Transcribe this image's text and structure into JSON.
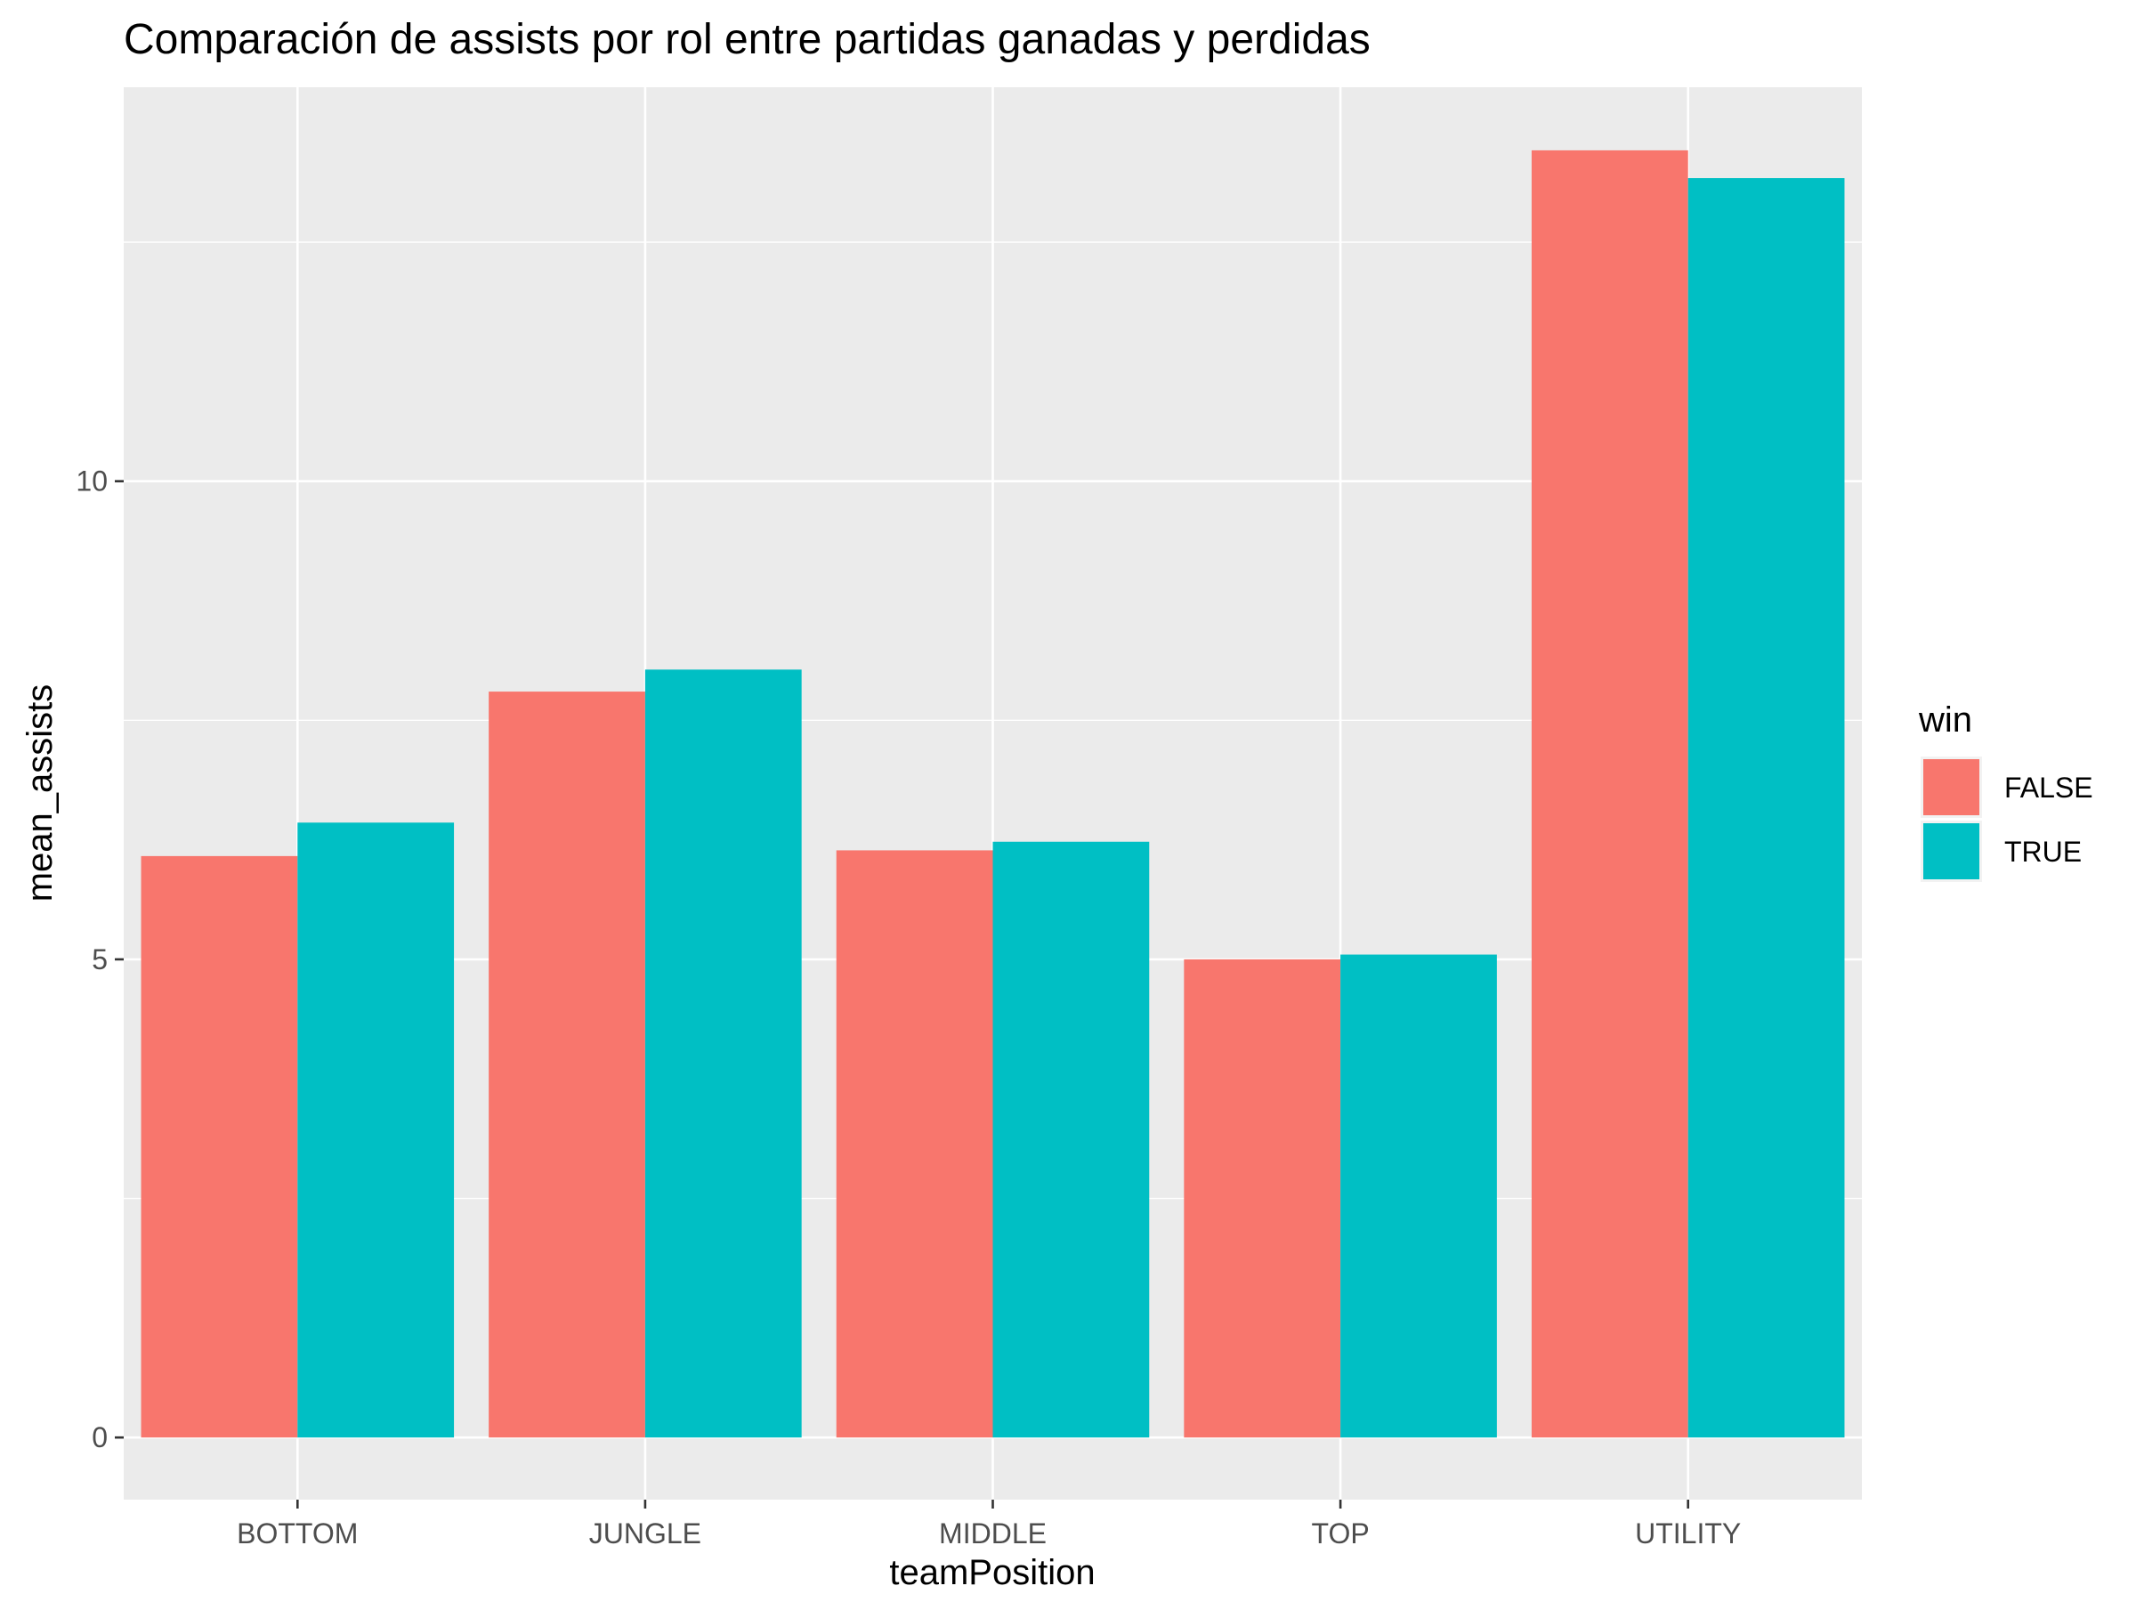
{
  "chart_data": {
    "type": "bar",
    "title": "Comparación de assists por rol entre partidas ganadas y perdidas",
    "xlabel": "teamPosition",
    "ylabel": "mean_assists",
    "categories": [
      "BOTTOM",
      "JUNGLE",
      "MIDDLE",
      "TOP",
      "UTILITY"
    ],
    "series": [
      {
        "name": "FALSE",
        "color": "#F8766D",
        "values": [
          6.08,
          7.8,
          6.14,
          5.0,
          13.46
        ]
      },
      {
        "name": "TRUE",
        "color": "#00BFC4",
        "values": [
          6.43,
          8.03,
          6.23,
          5.05,
          13.17
        ]
      }
    ],
    "ylim": [
      -0.65,
      14.12
    ],
    "yticks": [
      0,
      5,
      10
    ],
    "ytick_labels": [
      "0",
      "5",
      "10"
    ],
    "grid": true,
    "panel_background": "#EBEBEB",
    "grid_color": "#FFFFFF",
    "legend": {
      "title": "win",
      "position": "right"
    }
  }
}
